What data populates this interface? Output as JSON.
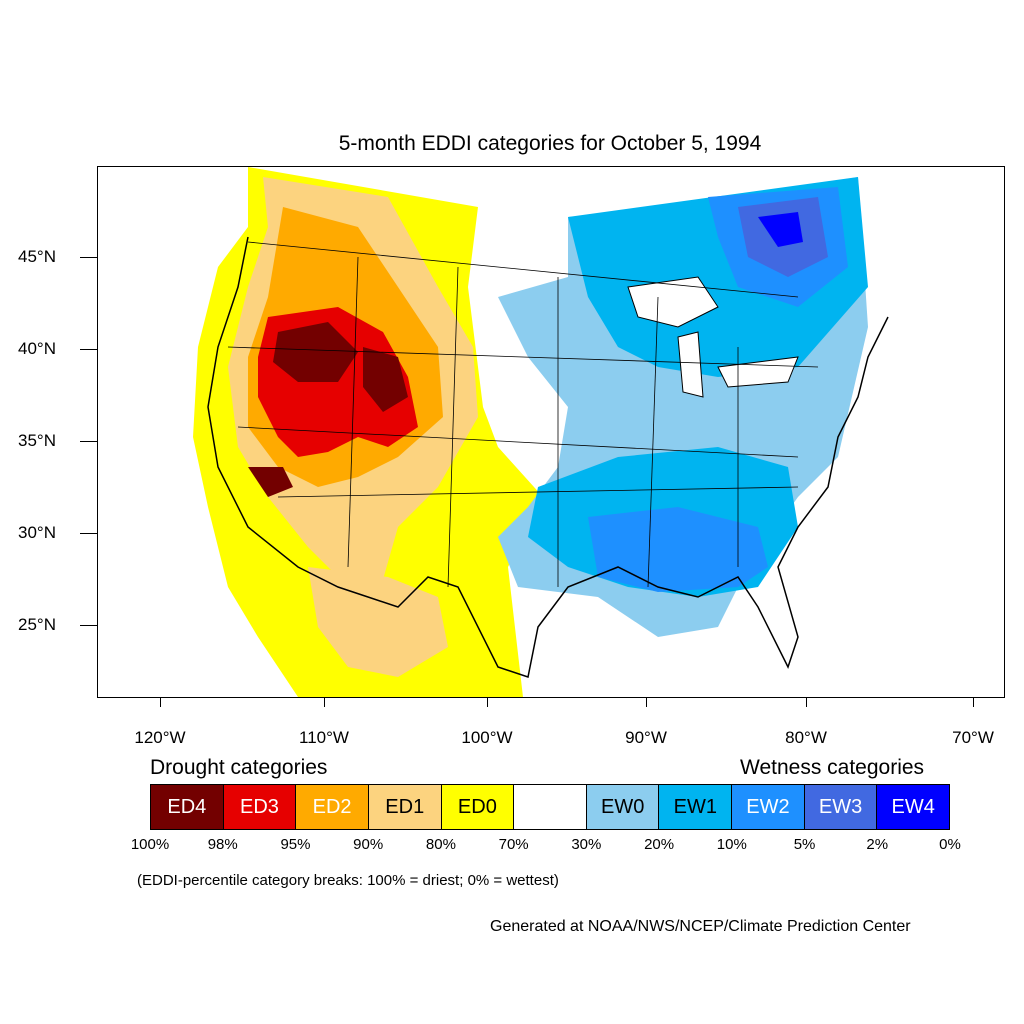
{
  "title": "5-month EDDI categories for October 5, 1994",
  "lat_labels": [
    "45°N",
    "40°N",
    "35°N",
    "30°N",
    "25°N"
  ],
  "lon_labels": [
    "120°W",
    "110°W",
    "100°W",
    "90°W",
    "80°W",
    "70°W"
  ],
  "legend": {
    "drought_heading": "Drought categories",
    "wetness_heading": "Wetness categories",
    "categories": [
      {
        "label": "ED4",
        "color": "#730000",
        "text_color": "#ffffff"
      },
      {
        "label": "ED3",
        "color": "#e60000",
        "text_color": "#ffffff"
      },
      {
        "label": "ED2",
        "color": "#ffaa00",
        "text_color": "#ffffff"
      },
      {
        "label": "ED1",
        "color": "#fcd37f",
        "text_color": "#000000"
      },
      {
        "label": "ED0",
        "color": "#ffff00",
        "text_color": "#000000"
      },
      {
        "label": "",
        "color": "#ffffff",
        "text_color": "#000000"
      },
      {
        "label": "EW0",
        "color": "#8ccdef",
        "text_color": "#000000"
      },
      {
        "label": "EW1",
        "color": "#00b4f0",
        "text_color": "#000000"
      },
      {
        "label": "EW2",
        "color": "#1e90ff",
        "text_color": "#ffffff"
      },
      {
        "label": "EW3",
        "color": "#4169e1",
        "text_color": "#ffffff"
      },
      {
        "label": "EW4",
        "color": "#0000ff",
        "text_color": "#ffffff"
      }
    ],
    "percent_breaks": [
      "100%",
      "98%",
      "95%",
      "90%",
      "80%",
      "70%",
      "30%",
      "20%",
      "10%",
      "5%",
      "2%",
      "0%"
    ]
  },
  "note": "(EDDI-percentile category breaks: 100% = driest; 0% = wettest)",
  "credit": "Generated at NOAA/NWS/NCEP/Climate Prediction Center"
}
